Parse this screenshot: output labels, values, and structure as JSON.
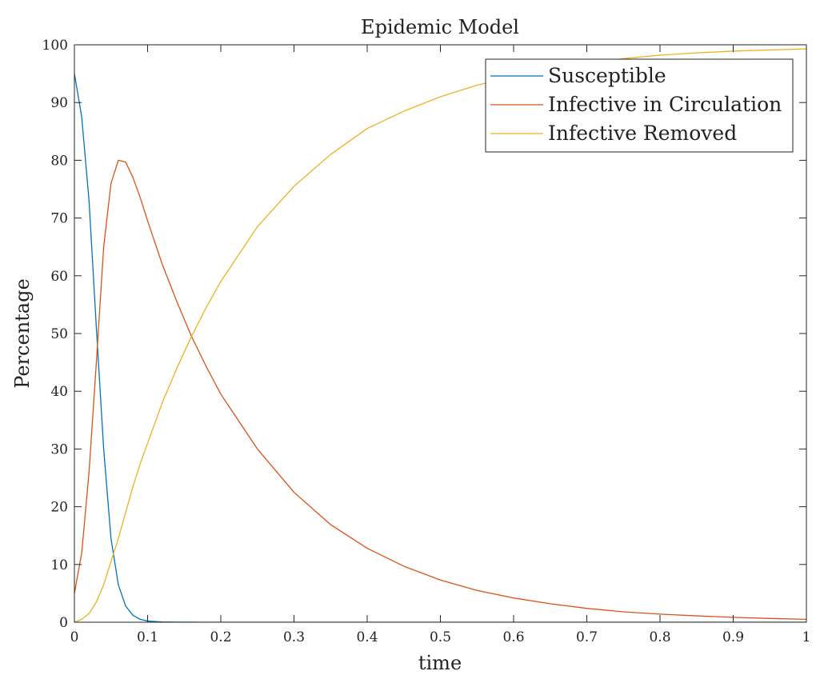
{
  "chart_data": {
    "type": "line",
    "title": "Epidemic Model",
    "xlabel": "time",
    "ylabel": "Percentage",
    "xlim": [
      0,
      1
    ],
    "ylim": [
      0,
      100
    ],
    "x_ticks": [
      "0",
      "0.1",
      "0.2",
      "0.3",
      "0.4",
      "0.5",
      "0.6",
      "0.7",
      "0.8",
      "0.9",
      "1"
    ],
    "y_ticks": [
      "0",
      "10",
      "20",
      "30",
      "40",
      "50",
      "60",
      "70",
      "80",
      "90",
      "100"
    ],
    "grid": false,
    "legend_position": "top-right",
    "x": [
      0,
      0.01,
      0.02,
      0.03,
      0.04,
      0.05,
      0.06,
      0.07,
      0.08,
      0.09,
      0.1,
      0.12,
      0.14,
      0.16,
      0.18,
      0.2,
      0.25,
      0.3,
      0.35,
      0.4,
      0.45,
      0.5,
      0.55,
      0.6,
      0.65,
      0.7,
      0.75,
      0.8,
      0.85,
      0.9,
      0.95,
      1.0
    ],
    "series": [
      {
        "name": "Susceptible",
        "color": "#0072BD",
        "values": [
          95,
          87.5,
          73,
          51,
          30,
          14.5,
          6.5,
          2.8,
          1.2,
          0.5,
          0.2,
          0.05,
          0.02,
          0.01,
          0,
          0,
          0,
          0,
          0,
          0,
          0,
          0,
          0,
          0,
          0,
          0,
          0,
          0,
          0,
          0,
          0,
          0
        ]
      },
      {
        "name": "Infective in Circulation",
        "color": "#D95319",
        "values": [
          5,
          12,
          26,
          45,
          65,
          76,
          80,
          79.7,
          77,
          73.5,
          69.5,
          62,
          55.5,
          49.5,
          44.3,
          39.5,
          30,
          22.5,
          16.9,
          12.8,
          9.7,
          7.3,
          5.5,
          4.2,
          3.2,
          2.4,
          1.8,
          1.4,
          1.1,
          0.85,
          0.65,
          0.5
        ]
      },
      {
        "name": "Infective Removed",
        "color": "#EDB120",
        "values": [
          0,
          0.5,
          1.5,
          3.5,
          6.5,
          10.5,
          14.5,
          19,
          23.5,
          27.5,
          31,
          38,
          44,
          49.5,
          54.5,
          59,
          68.5,
          75.5,
          81,
          85.5,
          88.5,
          91,
          93,
          94.5,
          95.8,
          96.8,
          97.6,
          98.2,
          98.6,
          98.9,
          99.1,
          99.3
        ]
      }
    ]
  }
}
